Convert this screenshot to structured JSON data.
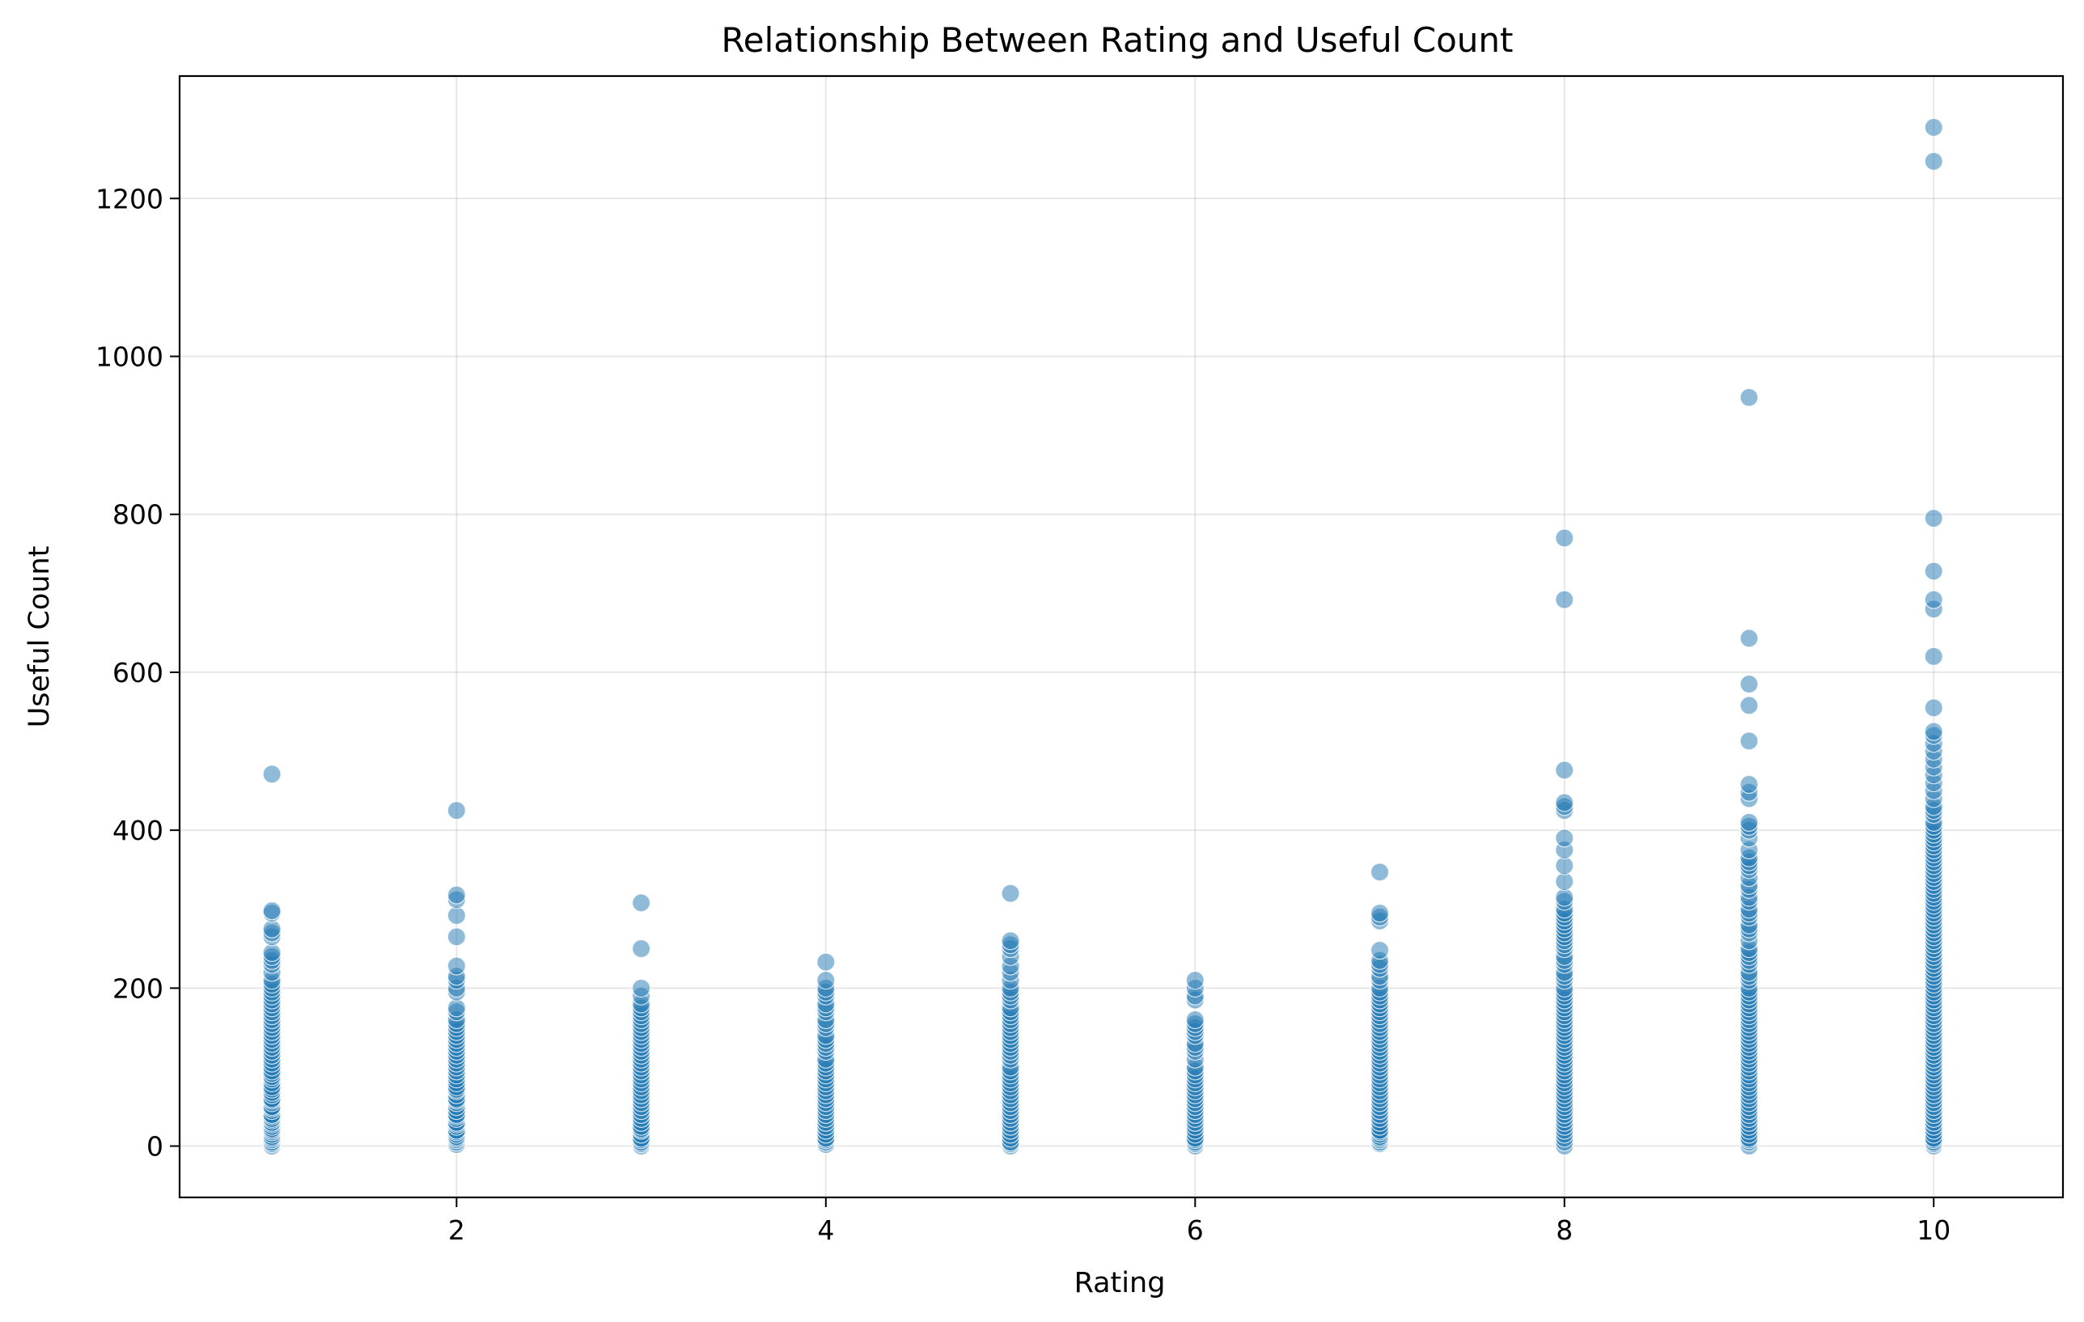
{
  "chart_data": {
    "type": "scatter",
    "title": "Relationship Between Rating and Useful Count",
    "xlabel": "Rating",
    "ylabel": "Useful Count",
    "xlim": [
      0.5,
      10.7
    ],
    "ylim": [
      -65,
      1355
    ],
    "xticks": [
      2,
      4,
      6,
      8,
      10
    ],
    "yticks": [
      0,
      200,
      400,
      600,
      800,
      1000,
      1200
    ],
    "grid": true,
    "legend": "none",
    "point_color": "#1f77b4",
    "point_opacity": 0.5,
    "series": [
      {
        "points": [
          {
            "rating": 1,
            "useful": [
              0,
              3,
              5,
              8,
              10,
              12,
              15,
              18,
              20,
              22,
              25,
              28,
              30,
              33,
              35,
              38,
              40,
              45,
              48,
              50,
              55,
              58,
              60,
              65,
              68,
              72,
              75,
              80,
              85,
              88,
              92,
              95,
              100,
              105,
              110,
              115,
              120,
              125,
              130,
              135,
              140,
              145,
              150,
              155,
              160,
              165,
              170,
              175,
              180,
              185,
              190,
              195,
              200,
              205,
              210,
              220,
              230,
              235,
              240,
              245,
              265,
              270,
              275,
              295,
              298,
              471
            ]
          },
          {
            "rating": 2,
            "useful": [
              2,
              5,
              8,
              10,
              12,
              15,
              18,
              20,
              25,
              28,
              30,
              35,
              38,
              40,
              45,
              50,
              55,
              58,
              60,
              65,
              70,
              72,
              75,
              80,
              85,
              90,
              95,
              100,
              105,
              110,
              115,
              120,
              125,
              130,
              135,
              140,
              145,
              150,
              155,
              160,
              170,
              175,
              195,
              200,
              210,
              215,
              228,
              265,
              292,
              312,
              318,
              425
            ]
          },
          {
            "rating": 3,
            "useful": [
              0,
              3,
              5,
              8,
              10,
              15,
              20,
              22,
              25,
              30,
              35,
              40,
              45,
              50,
              55,
              60,
              65,
              70,
              75,
              80,
              85,
              90,
              95,
              100,
              105,
              110,
              115,
              120,
              125,
              130,
              135,
              140,
              145,
              150,
              155,
              160,
              165,
              170,
              175,
              180,
              190,
              200,
              250,
              308
            ]
          },
          {
            "rating": 4,
            "useful": [
              2,
              5,
              8,
              10,
              15,
              20,
              25,
              30,
              35,
              40,
              45,
              50,
              55,
              60,
              65,
              70,
              75,
              80,
              85,
              90,
              95,
              100,
              105,
              110,
              120,
              125,
              130,
              135,
              140,
              150,
              155,
              160,
              170,
              175,
              180,
              190,
              195,
              200,
              210,
              233
            ]
          },
          {
            "rating": 5,
            "useful": [
              0,
              3,
              5,
              10,
              15,
              20,
              25,
              30,
              35,
              40,
              45,
              50,
              55,
              60,
              65,
              70,
              75,
              80,
              85,
              90,
              95,
              100,
              110,
              115,
              120,
              125,
              130,
              135,
              140,
              145,
              150,
              155,
              160,
              165,
              170,
              175,
              185,
              190,
              195,
              200,
              210,
              220,
              228,
              240,
              250,
              255,
              260,
              320
            ]
          },
          {
            "rating": 6,
            "useful": [
              0,
              3,
              5,
              8,
              10,
              15,
              20,
              25,
              30,
              35,
              40,
              45,
              50,
              55,
              60,
              65,
              70,
              75,
              80,
              85,
              90,
              95,
              100,
              110,
              120,
              125,
              130,
              140,
              145,
              150,
              155,
              160,
              185,
              190,
              200,
              210
            ]
          },
          {
            "rating": 7,
            "useful": [
              3,
              5,
              8,
              10,
              12,
              15,
              18,
              20,
              25,
              30,
              35,
              40,
              45,
              50,
              55,
              60,
              65,
              70,
              75,
              80,
              85,
              90,
              95,
              100,
              105,
              110,
              115,
              120,
              125,
              130,
              135,
              140,
              145,
              150,
              155,
              160,
              165,
              170,
              175,
              180,
              185,
              190,
              195,
              200,
              210,
              215,
              225,
              230,
              235,
              248,
              285,
              290,
              295,
              347
            ]
          },
          {
            "rating": 8,
            "useful": [
              0,
              5,
              10,
              15,
              20,
              25,
              30,
              35,
              40,
              45,
              50,
              55,
              60,
              65,
              70,
              75,
              80,
              85,
              90,
              95,
              100,
              105,
              110,
              115,
              120,
              125,
              130,
              135,
              140,
              145,
              150,
              155,
              160,
              165,
              170,
              175,
              180,
              185,
              190,
              195,
              200,
              210,
              215,
              220,
              230,
              235,
              240,
              250,
              255,
              260,
              265,
              270,
              275,
              280,
              285,
              290,
              295,
              300,
              310,
              315,
              335,
              355,
              375,
              390,
              425,
              430,
              435,
              476,
              692,
              770
            ]
          },
          {
            "rating": 9,
            "useful": [
              0,
              5,
              8,
              10,
              15,
              20,
              25,
              30,
              35,
              40,
              45,
              50,
              55,
              60,
              65,
              70,
              75,
              80,
              85,
              90,
              95,
              100,
              105,
              110,
              115,
              120,
              125,
              130,
              135,
              140,
              145,
              150,
              155,
              160,
              165,
              170,
              175,
              180,
              185,
              190,
              195,
              200,
              210,
              215,
              220,
              230,
              235,
              240,
              245,
              250,
              260,
              270,
              275,
              280,
              290,
              295,
              300,
              310,
              315,
              325,
              330,
              340,
              350,
              355,
              360,
              365,
              375,
              390,
              400,
              405,
              410,
              440,
              448,
              458,
              513,
              558,
              585,
              643,
              948
            ]
          },
          {
            "rating": 10,
            "useful": [
              0,
              3,
              5,
              8,
              10,
              15,
              20,
              25,
              30,
              35,
              40,
              45,
              50,
              55,
              60,
              65,
              70,
              75,
              80,
              85,
              90,
              95,
              100,
              105,
              110,
              115,
              120,
              125,
              130,
              135,
              140,
              145,
              150,
              155,
              160,
              165,
              170,
              175,
              180,
              185,
              190,
              195,
              200,
              205,
              210,
              215,
              220,
              225,
              230,
              235,
              240,
              245,
              250,
              255,
              260,
              265,
              270,
              275,
              280,
              285,
              290,
              295,
              300,
              305,
              310,
              315,
              320,
              325,
              330,
              335,
              340,
              345,
              350,
              355,
              360,
              365,
              370,
              375,
              380,
              385,
              390,
              395,
              400,
              405,
              410,
              420,
              425,
              430,
              440,
              450,
              460,
              470,
              480,
              490,
              500,
              510,
              520,
              525,
              555,
              620,
              680,
              692,
              728,
              795,
              1247,
              1290
            ]
          }
        ]
      }
    ]
  }
}
